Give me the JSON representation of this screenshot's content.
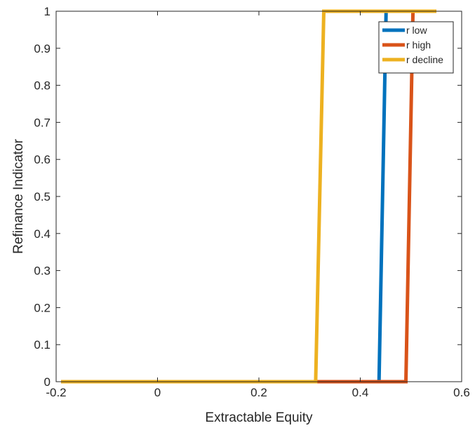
{
  "chart_data": {
    "type": "line",
    "title": "",
    "xlabel": "Extractable Equity",
    "ylabel": "Refinance Indicator",
    "xlim": [
      -0.2,
      0.6
    ],
    "ylim": [
      0,
      1
    ],
    "xticks": [
      -0.2,
      0,
      0.2,
      0.4,
      0.6
    ],
    "xtick_labels": [
      "-0.2",
      "0",
      "0.2",
      "0.4",
      "0.6"
    ],
    "yticks": [
      0,
      0.1,
      0.2,
      0.3,
      0.4,
      0.5,
      0.6,
      0.7,
      0.8,
      0.9,
      1
    ],
    "ytick_labels": [
      "0",
      "0.1",
      "0.2",
      "0.3",
      "0.4",
      "0.5",
      "0.6",
      "0.7",
      "0.8",
      "0.9",
      "1"
    ],
    "grid": false,
    "legend_position": "top-right",
    "series": [
      {
        "name": "r low",
        "color": "#0072BD",
        "x": [
          -0.19,
          0.437,
          0.451,
          0.55
        ],
        "y": [
          0,
          0,
          1,
          1
        ]
      },
      {
        "name": "r high",
        "color": "#D95319",
        "x": [
          -0.19,
          0.49,
          0.504,
          0.55
        ],
        "y": [
          0,
          0,
          1,
          1
        ]
      },
      {
        "name": "r decline",
        "color": "#EDB120",
        "x": [
          -0.19,
          0.312,
          0.328,
          0.55
        ],
        "y": [
          0,
          0,
          1,
          1
        ]
      }
    ]
  }
}
